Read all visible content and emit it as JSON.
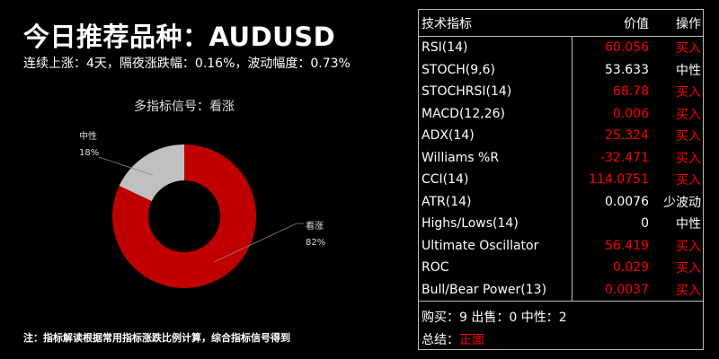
{
  "title": "今日推荐品种：AUDUSD",
  "subtitle": "连续上涨：4天，隔夜涨跌幅：0.16%，波动幅度：0.73%",
  "note": "注：指标解读根据常用指标涨跌比例计算，综合指标信号得到",
  "chart_data": {
    "type": "pie",
    "title": "多指标信号：看涨",
    "donut": true,
    "slices": [
      {
        "label": "看涨",
        "value": 82,
        "value_label": "82%",
        "color": "#c00000"
      },
      {
        "label": "中性",
        "value": 18,
        "value_label": "18%",
        "color": "#c0c0c0"
      }
    ]
  },
  "table": {
    "headers": [
      "技术指标",
      "价值",
      "操作"
    ],
    "rows": [
      {
        "name": "RSI(14)",
        "value": "60.056",
        "action": "买入",
        "signal": "buy"
      },
      {
        "name": "STOCH(9,6)",
        "value": "53.633",
        "action": "中性",
        "signal": "neutral"
      },
      {
        "name": "STOCHRSI(14)",
        "value": "68.78",
        "action": "买入",
        "signal": "buy"
      },
      {
        "name": "MACD(12,26)",
        "value": "0.006",
        "action": "买入",
        "signal": "buy"
      },
      {
        "name": "ADX(14)",
        "value": "25.324",
        "action": "买入",
        "signal": "buy"
      },
      {
        "name": "Williams %R",
        "value": "-32.471",
        "action": "买入",
        "signal": "buy"
      },
      {
        "name": "CCI(14)",
        "value": "114.0751",
        "action": "买入",
        "signal": "buy"
      },
      {
        "name": "ATR(14)",
        "value": "0.0076",
        "action": "少波动",
        "signal": "neutral"
      },
      {
        "name": "Highs/Lows(14)",
        "value": "0",
        "action": "中性",
        "signal": "neutral"
      },
      {
        "name": "Ultimate Oscillator",
        "value": "56.419",
        "action": "买入",
        "signal": "buy"
      },
      {
        "name": "ROC",
        "value": "0.029",
        "action": "买入",
        "signal": "buy"
      },
      {
        "name": "Bull/Bear Power(13)",
        "value": "0.0037",
        "action": "买入",
        "signal": "buy"
      }
    ],
    "counts": "购买：9 出售：0 中性：2",
    "summary_label": "总结：",
    "summary_value": "正面"
  },
  "colors": {
    "buy": "#ff0000",
    "neutral": "#ffffff"
  }
}
